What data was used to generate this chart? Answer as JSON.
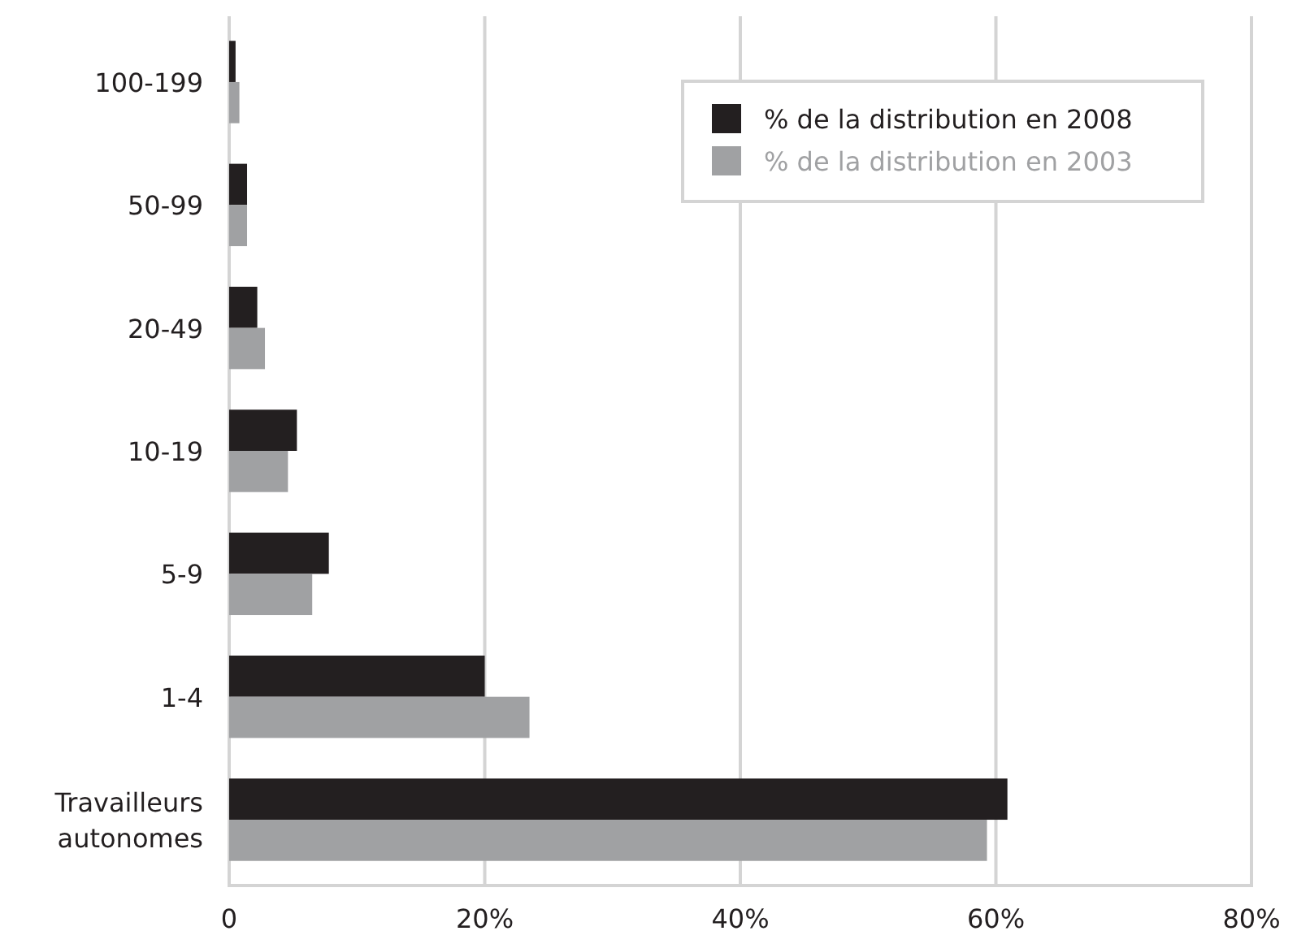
{
  "chart_data": {
    "type": "bar",
    "orientation": "horizontal",
    "categories": [
      "100-199",
      "50-99",
      "20-49",
      "10-19",
      "5-9",
      "1-4",
      "Travailleurs autonomes"
    ],
    "series": [
      {
        "name": "% de la distribution en 2008",
        "color": "#231f20",
        "values": [
          0.5,
          1.4,
          2.2,
          5.3,
          7.8,
          20.0,
          60.9
        ]
      },
      {
        "name": "% de la distribution en 2003",
        "color": "#a0a1a3",
        "values": [
          0.8,
          1.4,
          2.8,
          4.6,
          6.5,
          23.5,
          59.3
        ]
      }
    ],
    "xlim": [
      0,
      80
    ],
    "xticks": [
      0,
      {
        "value": 20,
        "label": "20%"
      },
      {
        "value": 40,
        "label": "40%"
      },
      {
        "value": 60,
        "label": "60%"
      },
      {
        "value": 80,
        "label": "80%"
      }
    ],
    "grid": "x",
    "legend": "top right"
  }
}
